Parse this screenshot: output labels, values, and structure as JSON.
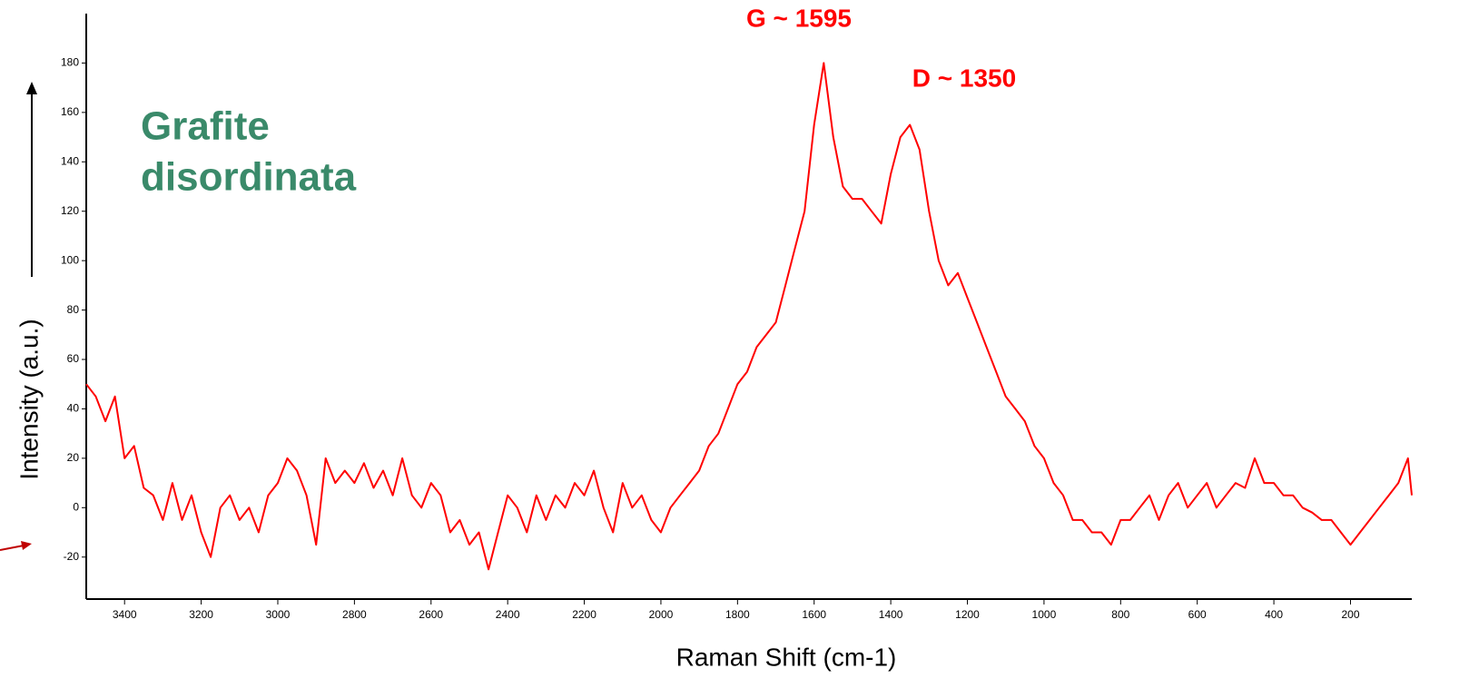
{
  "chart_data": {
    "type": "line",
    "inset_text": [
      "Grafite",
      "disordinata"
    ],
    "annotations": [
      "G ~ 1595",
      "D ~ 1350"
    ],
    "xlabel": "Raman Shift (cm-1)",
    "ylabel": "Intensity (a.u.)",
    "color": "#ff0000",
    "xlim": [
      3500,
      40
    ],
    "ylim": [
      -37,
      200
    ],
    "xticks": [
      3400,
      3200,
      3000,
      2800,
      2600,
      2400,
      2200,
      2000,
      1800,
      1600,
      1400,
      1200,
      1000,
      800,
      600,
      400,
      200
    ],
    "yticks": [
      -20,
      0,
      20,
      40,
      60,
      80,
      100,
      120,
      140,
      160,
      180
    ],
    "x": [
      3500,
      3475,
      3450,
      3425,
      3400,
      3375,
      3350,
      3325,
      3300,
      3275,
      3250,
      3225,
      3200,
      3175,
      3150,
      3125,
      3100,
      3075,
      3050,
      3025,
      3000,
      2975,
      2950,
      2925,
      2900,
      2875,
      2850,
      2825,
      2800,
      2775,
      2750,
      2725,
      2700,
      2675,
      2650,
      2625,
      2600,
      2575,
      2550,
      2525,
      2500,
      2475,
      2450,
      2425,
      2400,
      2375,
      2350,
      2325,
      2300,
      2275,
      2250,
      2225,
      2200,
      2175,
      2150,
      2125,
      2100,
      2075,
      2050,
      2025,
      2000,
      1975,
      1950,
      1925,
      1900,
      1875,
      1850,
      1825,
      1800,
      1775,
      1750,
      1725,
      1700,
      1675,
      1650,
      1625,
      1600,
      1575,
      1550,
      1525,
      1500,
      1475,
      1450,
      1425,
      1400,
      1375,
      1350,
      1325,
      1300,
      1275,
      1250,
      1225,
      1200,
      1175,
      1150,
      1125,
      1100,
      1075,
      1050,
      1025,
      1000,
      975,
      950,
      925,
      900,
      875,
      850,
      825,
      800,
      775,
      750,
      725,
      700,
      675,
      650,
      625,
      600,
      575,
      550,
      525,
      500,
      475,
      450,
      425,
      400,
      375,
      350,
      325,
      300,
      275,
      250,
      225,
      200,
      175,
      150,
      125,
      100,
      75,
      50,
      40
    ],
    "values": [
      50,
      45,
      35,
      45,
      20,
      25,
      8,
      5,
      -5,
      10,
      -5,
      5,
      -10,
      -20,
      0,
      5,
      -5,
      0,
      -10,
      5,
      10,
      20,
      15,
      5,
      -15,
      20,
      10,
      15,
      10,
      18,
      8,
      15,
      5,
      20,
      5,
      0,
      10,
      5,
      -10,
      -5,
      -15,
      -10,
      -25,
      -10,
      5,
      0,
      -10,
      5,
      -5,
      5,
      0,
      10,
      5,
      15,
      0,
      -10,
      10,
      0,
      5,
      -5,
      -10,
      0,
      5,
      10,
      15,
      25,
      30,
      40,
      50,
      55,
      65,
      70,
      75,
      90,
      105,
      120,
      155,
      180,
      150,
      130,
      125,
      125,
      120,
      115,
      135,
      150,
      155,
      145,
      120,
      100,
      90,
      95,
      85,
      75,
      65,
      55,
      45,
      40,
      35,
      25,
      20,
      10,
      5,
      -5,
      -5,
      -10,
      -10,
      -15,
      -5,
      -5,
      0,
      5,
      -5,
      5,
      10,
      0,
      5,
      10,
      0,
      5,
      10,
      8,
      20,
      10,
      10,
      5,
      5,
      0,
      -2,
      -5,
      -5,
      -10,
      -15,
      -10,
      -5,
      0,
      5,
      10,
      20,
      5
    ]
  }
}
